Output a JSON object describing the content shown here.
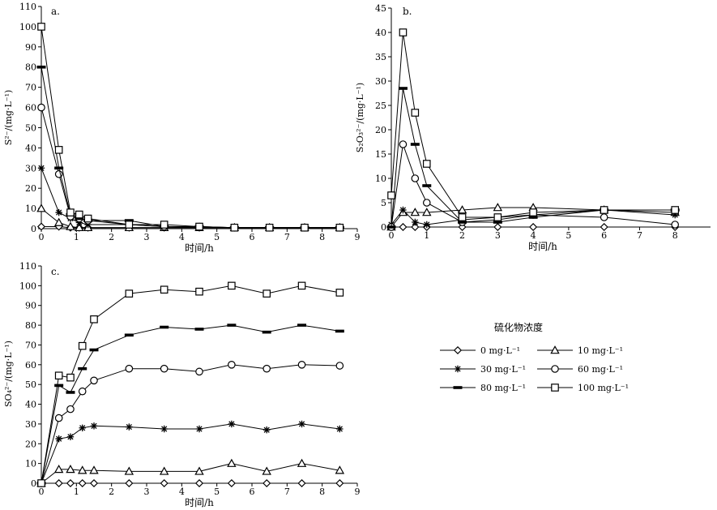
{
  "legend": {
    "title": "硫化物浓度",
    "entries": [
      "0 mg·L⁻¹",
      "10 mg·L⁻¹",
      "30 mg·L⁻¹",
      "60 mg·L⁻¹",
      "80 mg·L⁻¹",
      "100 mg·L⁻¹"
    ]
  },
  "chart_data": [
    {
      "panel": "a.",
      "type": "line",
      "xlabel": "时间/h",
      "ylabel": "S²⁻/(mg·L⁻¹)",
      "xlim": [
        0,
        9
      ],
      "ylim": [
        0,
        110
      ],
      "xticks": [
        0,
        1,
        2,
        3,
        4,
        5,
        6,
        7,
        8,
        9
      ],
      "yticks": [
        0,
        10,
        20,
        30,
        40,
        50,
        60,
        70,
        80,
        90,
        100,
        110
      ],
      "series": [
        {
          "name": "0 mg·L⁻¹",
          "marker": "diamond",
          "x": [
            0,
            0.5,
            0.83,
            1.08,
            1.33,
            2.5,
            3.5,
            4.5,
            5.5,
            6.5,
            7.5,
            8.5
          ],
          "y": [
            1,
            1,
            0.5,
            0.5,
            0.5,
            0.5,
            0.5,
            0.5,
            0.5,
            0.5,
            0.5,
            0.5
          ]
        },
        {
          "name": "10 mg·L⁻¹",
          "marker": "triangle",
          "x": [
            0,
            0.5,
            0.83,
            1.08,
            1.33,
            2.5,
            3.5,
            4.5,
            5.5,
            6.5,
            7.5,
            8.5
          ],
          "y": [
            10,
            3,
            1,
            0.5,
            0.5,
            0.5,
            0.5,
            0.5,
            0.5,
            0.5,
            0.5,
            0.5
          ]
        },
        {
          "name": "30 mg·L⁻¹",
          "marker": "star",
          "x": [
            0,
            0.5,
            0.83,
            1.08,
            1.33,
            2.5,
            3.5,
            4.5,
            5.5,
            6.5,
            7.5,
            8.5
          ],
          "y": [
            30,
            8,
            5,
            3,
            2,
            2,
            1,
            0.5,
            0.5,
            0.5,
            0.5,
            0.5
          ]
        },
        {
          "name": "60 mg·L⁻¹",
          "marker": "circle",
          "x": [
            0,
            0.5,
            0.83,
            1.08,
            1.33,
            2.5,
            3.5,
            4.5,
            5.5,
            6.5,
            7.5,
            8.5
          ],
          "y": [
            60,
            27,
            6,
            5,
            4,
            2,
            1,
            1,
            0.5,
            0.5,
            0.5,
            0.5
          ]
        },
        {
          "name": "80 mg·L⁻¹",
          "marker": "bar",
          "x": [
            0,
            0.5,
            0.83,
            1.08,
            1.33,
            2.5,
            3.5,
            4.5,
            5.5,
            6.5,
            7.5,
            8.5
          ],
          "y": [
            80,
            30,
            7,
            5,
            4,
            4,
            1,
            1,
            0.5,
            0.5,
            0.5,
            0.5
          ]
        },
        {
          "name": "100 mg·L⁻¹",
          "marker": "square",
          "x": [
            0,
            0.5,
            0.83,
            1.08,
            1.33,
            2.5,
            3.5,
            4.5,
            5.5,
            6.5,
            7.5,
            8.5
          ],
          "y": [
            100,
            39,
            8,
            7,
            5,
            2,
            2,
            1,
            0.5,
            0.5,
            0.5,
            0.5
          ]
        }
      ]
    },
    {
      "panel": "b.",
      "type": "line",
      "xlabel": "时间/h",
      "ylabel": "S₂O₃²⁻/(mg·L⁻¹)",
      "xlim": [
        0,
        9
      ],
      "ylim": [
        0,
        45
      ],
      "xticks": [
        0,
        1,
        2,
        3,
        4,
        5,
        6,
        7,
        8
      ],
      "yticks": [
        0,
        5,
        10,
        15,
        20,
        25,
        30,
        35,
        40,
        45
      ],
      "series": [
        {
          "name": "0 mg·L⁻¹",
          "marker": "diamond",
          "x": [
            0,
            0.33,
            0.67,
            1,
            2,
            3,
            4,
            6,
            8
          ],
          "y": [
            0,
            0,
            0,
            0,
            0,
            0,
            0,
            0,
            0
          ]
        },
        {
          "name": "10 mg·L⁻¹",
          "marker": "triangle",
          "x": [
            0,
            0.33,
            0.67,
            1,
            2,
            3,
            4,
            6,
            8
          ],
          "y": [
            0,
            3,
            3,
            3,
            3.5,
            4,
            4,
            3.5,
            3
          ]
        },
        {
          "name": "30 mg·L⁻¹",
          "marker": "star",
          "x": [
            0,
            0.33,
            0.67,
            1,
            2,
            3,
            4,
            6,
            8
          ],
          "y": [
            0.5,
            3.5,
            1,
            0.5,
            1.5,
            2,
            2.5,
            3.5,
            2.5
          ]
        },
        {
          "name": "60 mg·L⁻¹",
          "marker": "circle",
          "x": [
            0,
            0.33,
            0.67,
            1,
            2,
            3,
            4,
            6,
            8
          ],
          "y": [
            0,
            17,
            10,
            5,
            1,
            1.5,
            2.5,
            2,
            0.5
          ]
        },
        {
          "name": "80 mg·L⁻¹",
          "marker": "bar",
          "x": [
            0,
            0.33,
            0.67,
            1,
            2,
            3,
            4,
            6,
            8
          ],
          "y": [
            0,
            28.5,
            17,
            8.5,
            1,
            1,
            2,
            3.5,
            3.5
          ]
        },
        {
          "name": "100 mg·L⁻¹",
          "marker": "square",
          "x": [
            0,
            0.33,
            0.67,
            1,
            2,
            3,
            4,
            6,
            8
          ],
          "y": [
            6.5,
            40,
            23.5,
            13,
            2,
            2,
            3,
            3.5,
            3.5
          ]
        }
      ]
    },
    {
      "panel": "c.",
      "type": "line",
      "xlabel": "时间/h",
      "ylabel": "SO₄²⁻/(mg·L⁻¹)",
      "xlim": [
        0,
        9
      ],
      "ylim": [
        0,
        110
      ],
      "xticks": [
        0,
        1,
        2,
        3,
        4,
        5,
        6,
        7,
        8,
        9
      ],
      "yticks": [
        0,
        10,
        20,
        30,
        40,
        50,
        60,
        70,
        80,
        90,
        100,
        110
      ],
      "series": [
        {
          "name": "0 mg·L⁻¹",
          "marker": "diamond",
          "x": [
            0,
            0.5,
            0.83,
            1.17,
            1.5,
            2.5,
            3.5,
            4.5,
            5.42,
            6.42,
            7.42,
            8.5
          ],
          "y": [
            0,
            0,
            0,
            0,
            0,
            0,
            0,
            0,
            0,
            0,
            0,
            0
          ]
        },
        {
          "name": "10 mg·L⁻¹",
          "marker": "triangle",
          "x": [
            0,
            0.5,
            0.83,
            1.17,
            1.5,
            2.5,
            3.5,
            4.5,
            5.42,
            6.42,
            7.42,
            8.5
          ],
          "y": [
            0,
            7,
            7,
            6.5,
            6.5,
            6,
            6,
            6,
            10,
            6,
            10,
            6.5
          ]
        },
        {
          "name": "30 mg·L⁻¹",
          "marker": "star",
          "x": [
            0,
            0.5,
            0.83,
            1.17,
            1.5,
            2.5,
            3.5,
            4.5,
            5.42,
            6.42,
            7.42,
            8.5
          ],
          "y": [
            0,
            22.5,
            23.5,
            28,
            29,
            28.5,
            27.5,
            27.5,
            30,
            27,
            30,
            27.5
          ]
        },
        {
          "name": "60 mg·L⁻¹",
          "marker": "circle",
          "x": [
            0,
            0.5,
            0.83,
            1.17,
            1.5,
            2.5,
            3.5,
            4.5,
            5.42,
            6.42,
            7.42,
            8.5
          ],
          "y": [
            0,
            33,
            37.5,
            46.5,
            52,
            58,
            58,
            56.5,
            60,
            58,
            60,
            59.5
          ]
        },
        {
          "name": "80 mg·L⁻¹",
          "marker": "bar",
          "x": [
            0,
            0.5,
            0.83,
            1.17,
            1.5,
            2.5,
            3.5,
            4.5,
            5.42,
            6.42,
            7.42,
            8.5
          ],
          "y": [
            0,
            49.5,
            46,
            58,
            67.5,
            75,
            79,
            78,
            80,
            76.5,
            80,
            77
          ]
        },
        {
          "name": "100 mg·L⁻¹",
          "marker": "square",
          "x": [
            0,
            0.5,
            0.83,
            1.17,
            1.5,
            2.5,
            3.5,
            4.5,
            5.42,
            6.42,
            7.42,
            8.5
          ],
          "y": [
            0,
            54.5,
            53.5,
            69.5,
            83,
            96,
            98,
            97,
            100,
            96,
            100,
            96.5
          ]
        }
      ]
    }
  ]
}
